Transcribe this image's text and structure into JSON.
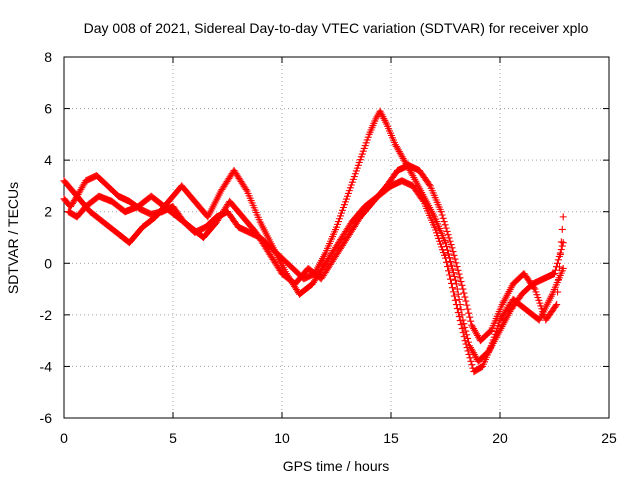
{
  "chart_data": {
    "type": "scatter",
    "title": "Day 008 of 2021, Sidereal Day-to-day VTEC variation (SDTVAR) for receiver xplo",
    "xlabel": "GPS time / hours",
    "ylabel": "SDTVAR / TECUs",
    "xlim": [
      0,
      25
    ],
    "ylim": [
      -6,
      8
    ],
    "x_ticks": [
      "0",
      "5",
      "10",
      "15",
      "20",
      "25"
    ],
    "y_ticks": [
      "-6",
      "-4",
      "-2",
      "0",
      "2",
      "4",
      "6",
      "8"
    ],
    "grid": true,
    "marker": "+",
    "marker_color": "#ff0000",
    "series": [
      {
        "name": "track-1",
        "x": [
          0.0,
          0.3,
          0.6,
          1.0,
          1.5,
          2.0,
          2.5,
          3.0,
          3.5,
          4.0,
          4.5,
          5.0,
          5.5,
          6.0,
          6.5,
          7.0,
          7.5,
          8.0,
          8.5,
          9.0,
          9.5,
          10.0,
          10.5,
          11.0,
          11.5,
          12.0,
          12.5,
          13.0,
          13.5,
          14.0,
          14.3,
          14.5,
          14.8,
          15.2,
          15.6,
          16.0,
          16.5,
          17.0,
          17.5,
          18.0,
          18.3,
          18.6,
          19.0,
          19.5,
          20.0,
          20.5,
          21.0,
          21.5,
          22.0,
          22.5,
          22.9
        ],
        "y": [
          2.5,
          2.2,
          2.6,
          3.2,
          3.4,
          3.0,
          2.6,
          2.4,
          2.1,
          1.9,
          2.0,
          2.2,
          1.6,
          1.2,
          1.4,
          1.8,
          2.0,
          1.4,
          1.2,
          1.0,
          0.6,
          0.2,
          -0.2,
          -0.6,
          -0.4,
          0.4,
          1.4,
          2.6,
          3.8,
          5.0,
          5.6,
          5.9,
          5.4,
          4.6,
          4.0,
          3.4,
          2.6,
          1.8,
          0.8,
          -0.8,
          -2.2,
          -3.2,
          -3.8,
          -3.4,
          -2.6,
          -1.8,
          -1.2,
          -0.8,
          -0.6,
          -0.4,
          0.8
        ]
      },
      {
        "name": "track-2",
        "x": [
          0.0,
          0.4,
          0.8,
          1.2,
          1.8,
          2.4,
          3.0,
          3.6,
          4.2,
          4.8,
          5.4,
          6.0,
          6.6,
          7.2,
          7.8,
          8.4,
          9.0,
          9.6,
          10.2,
          10.8,
          11.4,
          12.0,
          12.6,
          13.2,
          13.8,
          14.4,
          15.0,
          15.5,
          16.0,
          16.5,
          17.0,
          17.5,
          18.0,
          18.4,
          18.8,
          19.2,
          19.6,
          20.0,
          20.6,
          21.2,
          21.8,
          22.4,
          22.9
        ],
        "y": [
          3.2,
          2.8,
          2.4,
          2.0,
          1.6,
          1.2,
          0.8,
          1.4,
          1.8,
          2.4,
          3.0,
          2.4,
          1.8,
          2.8,
          3.6,
          2.8,
          1.6,
          0.6,
          -0.4,
          -1.2,
          -0.8,
          0.0,
          0.8,
          1.6,
          2.2,
          2.6,
          3.0,
          3.2,
          3.0,
          2.4,
          1.4,
          0.2,
          -1.6,
          -3.0,
          -4.2,
          -4.0,
          -3.2,
          -2.2,
          -1.4,
          -1.8,
          -2.2,
          -1.2,
          -0.2
        ]
      },
      {
        "name": "track-3",
        "x": [
          0.2,
          0.6,
          1.0,
          1.6,
          2.2,
          2.8,
          3.4,
          4.0,
          4.6,
          5.2,
          5.8,
          6.4,
          7.0,
          7.6,
          8.2,
          8.8,
          9.4,
          10.0,
          10.6,
          11.2,
          11.8,
          12.4,
          13.0,
          13.6,
          14.2,
          14.8,
          15.3,
          15.8,
          16.3,
          16.8,
          17.3,
          17.8,
          18.3,
          18.7,
          19.1,
          19.6,
          20.1,
          20.6,
          21.1,
          21.6,
          22.1,
          22.6,
          22.9
        ],
        "y": [
          2.0,
          1.8,
          2.2,
          2.6,
          2.4,
          2.0,
          2.2,
          2.6,
          2.2,
          1.8,
          1.4,
          1.0,
          1.6,
          2.4,
          1.8,
          1.2,
          0.4,
          -0.4,
          -0.8,
          -0.2,
          -0.6,
          0.2,
          1.0,
          1.8,
          2.4,
          3.0,
          3.6,
          3.8,
          3.6,
          3.0,
          2.0,
          0.6,
          -1.0,
          -2.4,
          -3.0,
          -2.6,
          -1.6,
          -0.8,
          -0.4,
          -1.0,
          -2.2,
          -1.6,
          1.8
        ]
      }
    ]
  }
}
